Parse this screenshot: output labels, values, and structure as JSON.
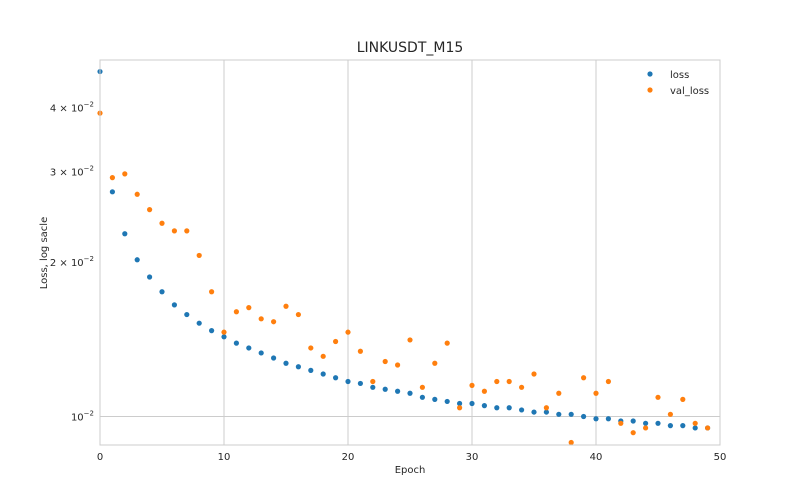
{
  "chart_data": {
    "type": "scatter",
    "title": "LINKUSDT_M15",
    "xlabel": "Epoch",
    "ylabel": "Loss, log sacle",
    "yscale": "log",
    "xlim": [
      0,
      50
    ],
    "ylim": [
      0.0088,
      0.0495
    ],
    "grid": true,
    "legend_position": "top-right",
    "x_ticks": [
      0,
      10,
      20,
      30,
      40,
      50
    ],
    "y_ticks": [
      {
        "value": 0.01,
        "mantissa": "",
        "base": "10",
        "exponent": "−2"
      },
      {
        "value": 0.02,
        "mantissa": "2 × ",
        "base": "10",
        "exponent": "−2"
      },
      {
        "value": 0.03,
        "mantissa": "3 × ",
        "base": "10",
        "exponent": "−2"
      },
      {
        "value": 0.04,
        "mantissa": "4 × ",
        "base": "10",
        "exponent": "−2"
      }
    ],
    "series": [
      {
        "name": "loss",
        "color": "#1f77b4",
        "x": [
          0,
          1,
          2,
          3,
          4,
          5,
          6,
          7,
          8,
          9,
          10,
          11,
          12,
          13,
          14,
          15,
          16,
          17,
          18,
          19,
          20,
          21,
          22,
          23,
          24,
          25,
          26,
          27,
          28,
          29,
          30,
          31,
          32,
          33,
          34,
          35,
          36,
          37,
          38,
          39,
          40,
          41,
          42,
          43,
          44,
          45,
          46,
          47,
          48,
          49
        ],
        "y": [
          0.047,
          0.0274,
          0.0227,
          0.0202,
          0.0187,
          0.0175,
          0.0165,
          0.0158,
          0.0152,
          0.0147,
          0.0143,
          0.0139,
          0.0136,
          0.0133,
          0.013,
          0.0127,
          0.0125,
          0.0123,
          0.0121,
          0.0119,
          0.0117,
          0.0116,
          0.0114,
          0.0113,
          0.0112,
          0.0111,
          0.0109,
          0.0108,
          0.0107,
          0.0106,
          0.0106,
          0.0105,
          0.0104,
          0.0104,
          0.0103,
          0.0102,
          0.0102,
          0.0101,
          0.0101,
          0.01,
          0.0099,
          0.0099,
          0.0098,
          0.0098,
          0.0097,
          0.0097,
          0.0096,
          0.0096,
          0.0095,
          0.0095
        ]
      },
      {
        "name": "val_loss",
        "color": "#ff7f0e",
        "x": [
          0,
          1,
          2,
          3,
          4,
          5,
          6,
          7,
          8,
          9,
          10,
          11,
          12,
          13,
          14,
          15,
          16,
          17,
          18,
          19,
          20,
          21,
          22,
          23,
          24,
          25,
          26,
          27,
          28,
          29,
          30,
          31,
          32,
          33,
          34,
          35,
          36,
          37,
          38,
          39,
          40,
          41,
          42,
          43,
          44,
          45,
          46,
          47,
          48,
          49
        ],
        "y": [
          0.039,
          0.0292,
          0.0297,
          0.0271,
          0.0253,
          0.0238,
          0.023,
          0.023,
          0.0206,
          0.0175,
          0.0146,
          0.016,
          0.0163,
          0.0155,
          0.0153,
          0.0164,
          0.0158,
          0.0136,
          0.0131,
          0.014,
          0.0146,
          0.0134,
          0.0117,
          0.0128,
          0.0126,
          0.0141,
          0.0114,
          0.0127,
          0.0139,
          0.0104,
          0.0115,
          0.0112,
          0.0117,
          0.0117,
          0.0114,
          0.0121,
          0.0104,
          0.0111,
          0.0089,
          0.0119,
          0.0111,
          0.0117,
          0.0097,
          0.0093,
          0.0095,
          0.0109,
          0.0101,
          0.0108,
          0.0097,
          0.0095
        ]
      }
    ]
  }
}
